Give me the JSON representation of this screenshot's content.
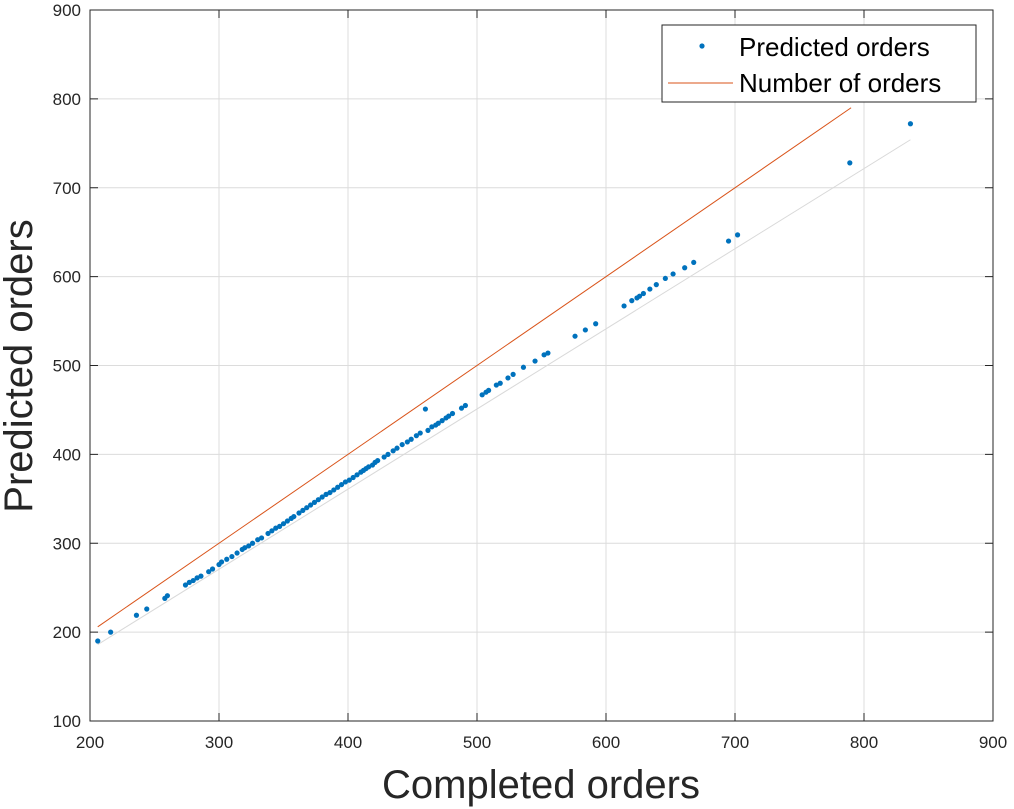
{
  "chart_data": {
    "type": "scatter",
    "title": "",
    "xlabel": "Completed orders",
    "ylabel": "Predicted orders",
    "xlim": [
      200,
      900
    ],
    "ylim": [
      100,
      900
    ],
    "xticks": [
      200,
      300,
      400,
      500,
      600,
      700,
      800,
      900
    ],
    "yticks": [
      100,
      200,
      300,
      400,
      500,
      600,
      700,
      800,
      900
    ],
    "xtick_labels": [
      "200",
      "300",
      "400",
      "500",
      "600",
      "700",
      "800",
      "900"
    ],
    "ytick_labels": [
      "100",
      "200",
      "300",
      "400",
      "500",
      "600",
      "700",
      "800",
      "900"
    ],
    "grid": true,
    "legend_position": "top-right",
    "series": [
      {
        "name": "Predicted orders",
        "kind": "scatter",
        "color": "#0072BD",
        "x": [
          206,
          216,
          236,
          244,
          258,
          260,
          274,
          277,
          280,
          283,
          286,
          292,
          295,
          300,
          302,
          306,
          310,
          314,
          318,
          320,
          323,
          326,
          330,
          333,
          338,
          341,
          344,
          347,
          350,
          353,
          356,
          358,
          362,
          365,
          368,
          371,
          374,
          377,
          380,
          383,
          386,
          389,
          392,
          395,
          398,
          401,
          404,
          407,
          410,
          412,
          414,
          416,
          419,
          421,
          423,
          428,
          431,
          435,
          438,
          442,
          446,
          449,
          453,
          456,
          460,
          462,
          465,
          468,
          470,
          473,
          476,
          478,
          481,
          488,
          491,
          504,
          507,
          509,
          515,
          518,
          524,
          528,
          536,
          545,
          552,
          555,
          576,
          584,
          592,
          614,
          620,
          624,
          626,
          629,
          634,
          639,
          646,
          652,
          661,
          668,
          695,
          702,
          789,
          836
        ],
        "y": [
          190,
          200,
          219,
          226,
          238,
          241,
          253,
          256,
          258,
          261,
          263,
          268,
          271,
          276,
          279,
          282,
          285,
          289,
          293,
          295,
          297,
          300,
          304,
          306,
          311,
          314,
          317,
          319,
          322,
          325,
          328,
          330,
          334,
          337,
          340,
          343,
          346,
          349,
          352,
          355,
          357,
          360,
          363,
          366,
          369,
          371,
          374,
          377,
          380,
          382,
          384,
          386,
          388,
          391,
          393,
          397,
          400,
          404,
          407,
          411,
          414,
          417,
          421,
          424,
          451,
          427,
          431,
          433,
          435,
          438,
          441,
          443,
          446,
          452,
          455,
          467,
          470,
          472,
          478,
          480,
          486,
          490,
          498,
          505,
          512,
          514,
          533,
          540,
          547,
          567,
          573,
          576,
          578,
          581,
          586,
          591,
          598,
          603,
          610,
          616,
          640,
          647,
          728,
          772
        ]
      },
      {
        "name": "Number of orders",
        "kind": "line",
        "color": "#D95319",
        "x": [
          206,
          790
        ],
        "y": [
          206,
          790
        ]
      },
      {
        "kind": "line",
        "color": "#d9d9d9",
        "x": [
          206,
          836
        ],
        "y": [
          186,
          754
        ]
      }
    ]
  }
}
